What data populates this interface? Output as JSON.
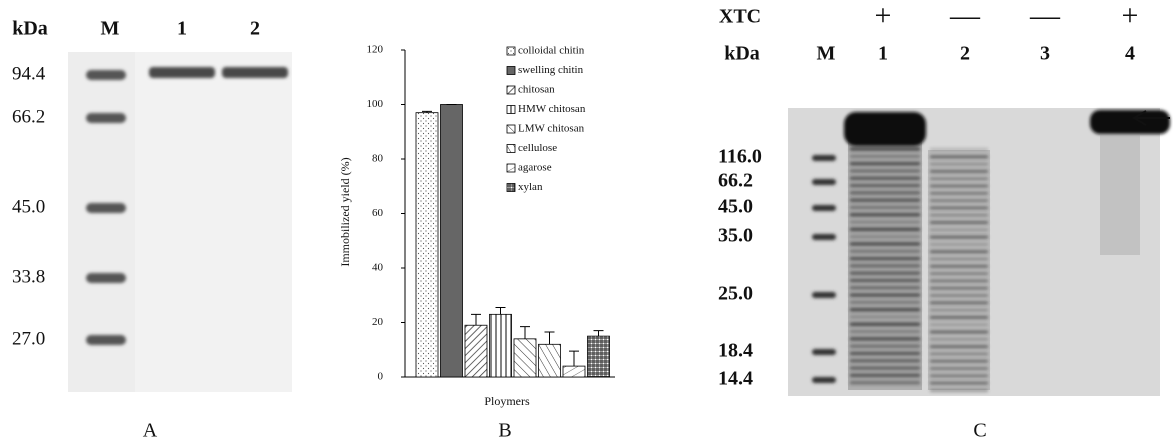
{
  "panel_a": {
    "label": "A",
    "unit": "kDa",
    "lanes": [
      "M",
      "1",
      "2"
    ],
    "markers": [
      "94.4",
      "66.2",
      "45.0",
      "33.8",
      "27.0"
    ]
  },
  "chart_data": {
    "type": "bar",
    "panel_label": "B",
    "xlabel": "Ploymers",
    "ylabel": "Immobilized yield (%)",
    "categories": [
      "colloidal chitin",
      "swelling chitin",
      "chitosan",
      "HMW chitosan",
      "LMW chitosan",
      "cellulose",
      "agarose",
      "xylan"
    ],
    "values": [
      97,
      100,
      19,
      23,
      14,
      12,
      4,
      15
    ],
    "errors": [
      0.5,
      0,
      4,
      2.5,
      4.5,
      4.5,
      5.5,
      2
    ],
    "ylim": [
      0,
      120
    ],
    "yticks": [
      0,
      20,
      40,
      60,
      80,
      100,
      120
    ]
  },
  "panel_c": {
    "label": "C",
    "xtc_label": "XTC",
    "xtc": [
      "+",
      "—",
      "—",
      "+"
    ],
    "unit": "kDa",
    "lanes": [
      "M",
      "1",
      "2",
      "3",
      "4"
    ],
    "markers": [
      "116.0",
      "66.2",
      "45.0",
      "35.0",
      "25.0",
      "18.4",
      "14.4"
    ]
  }
}
